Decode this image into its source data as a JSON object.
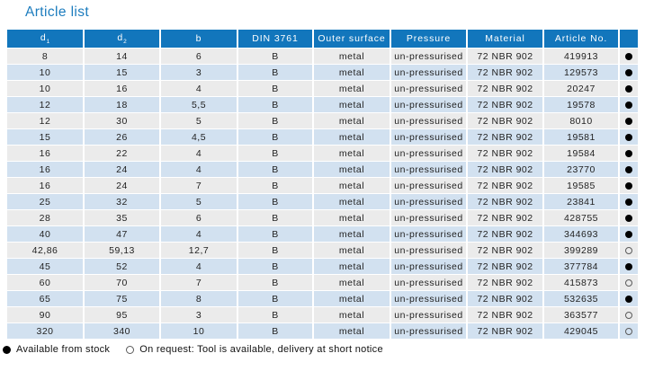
{
  "title": "Article list",
  "colors": {
    "header_bg": "#1276bc",
    "row_gray": "#ebebeb",
    "row_blue": "#d2e1f0",
    "title_text": "#1c7cbe",
    "header_text": "#ffffff",
    "body_text": "#222222",
    "dot_filled": "#000000"
  },
  "table": {
    "columns": [
      {
        "key": "d1",
        "label": "d",
        "sub": "1"
      },
      {
        "key": "d2",
        "label": "d",
        "sub": "2"
      },
      {
        "key": "b",
        "label": "b"
      },
      {
        "key": "din",
        "label": "DIN 3761"
      },
      {
        "key": "outer_surface",
        "label": "Outer surface"
      },
      {
        "key": "pressure",
        "label": "Pressure"
      },
      {
        "key": "material",
        "label": "Material"
      },
      {
        "key": "article_no",
        "label": "Article No."
      },
      {
        "key": "availability",
        "label": ""
      }
    ],
    "rows": [
      {
        "d1": "8",
        "d2": "14",
        "b": "6",
        "din": "B",
        "outer_surface": "metal",
        "pressure": "un-pressurised",
        "material": "72 NBR 902",
        "article_no": "419913",
        "availability": "stock"
      },
      {
        "d1": "10",
        "d2": "15",
        "b": "3",
        "din": "B",
        "outer_surface": "metal",
        "pressure": "un-pressurised",
        "material": "72 NBR 902",
        "article_no": "129573",
        "availability": "stock"
      },
      {
        "d1": "10",
        "d2": "16",
        "b": "4",
        "din": "B",
        "outer_surface": "metal",
        "pressure": "un-pressurised",
        "material": "72 NBR 902",
        "article_no": "20247",
        "availability": "stock"
      },
      {
        "d1": "12",
        "d2": "18",
        "b": "5,5",
        "din": "B",
        "outer_surface": "metal",
        "pressure": "un-pressurised",
        "material": "72 NBR 902",
        "article_no": "19578",
        "availability": "stock"
      },
      {
        "d1": "12",
        "d2": "30",
        "b": "5",
        "din": "B",
        "outer_surface": "metal",
        "pressure": "un-pressurised",
        "material": "72 NBR 902",
        "article_no": "8010",
        "availability": "stock"
      },
      {
        "d1": "15",
        "d2": "26",
        "b": "4,5",
        "din": "B",
        "outer_surface": "metal",
        "pressure": "un-pressurised",
        "material": "72 NBR 902",
        "article_no": "19581",
        "availability": "stock"
      },
      {
        "d1": "16",
        "d2": "22",
        "b": "4",
        "din": "B",
        "outer_surface": "metal",
        "pressure": "un-pressurised",
        "material": "72 NBR 902",
        "article_no": "19584",
        "availability": "stock"
      },
      {
        "d1": "16",
        "d2": "24",
        "b": "4",
        "din": "B",
        "outer_surface": "metal",
        "pressure": "un-pressurised",
        "material": "72 NBR 902",
        "article_no": "23770",
        "availability": "stock"
      },
      {
        "d1": "16",
        "d2": "24",
        "b": "7",
        "din": "B",
        "outer_surface": "metal",
        "pressure": "un-pressurised",
        "material": "72 NBR 902",
        "article_no": "19585",
        "availability": "stock"
      },
      {
        "d1": "25",
        "d2": "32",
        "b": "5",
        "din": "B",
        "outer_surface": "metal",
        "pressure": "un-pressurised",
        "material": "72 NBR 902",
        "article_no": "23841",
        "availability": "stock"
      },
      {
        "d1": "28",
        "d2": "35",
        "b": "6",
        "din": "B",
        "outer_surface": "metal",
        "pressure": "un-pressurised",
        "material": "72 NBR 902",
        "article_no": "428755",
        "availability": "stock"
      },
      {
        "d1": "40",
        "d2": "47",
        "b": "4",
        "din": "B",
        "outer_surface": "metal",
        "pressure": "un-pressurised",
        "material": "72 NBR 902",
        "article_no": "344693",
        "availability": "stock"
      },
      {
        "d1": "42,86",
        "d2": "59,13",
        "b": "12,7",
        "din": "B",
        "outer_surface": "metal",
        "pressure": "un-pressurised",
        "material": "72 NBR 902",
        "article_no": "399289",
        "availability": "on-request"
      },
      {
        "d1": "45",
        "d2": "52",
        "b": "4",
        "din": "B",
        "outer_surface": "metal",
        "pressure": "un-pressurised",
        "material": "72 NBR 902",
        "article_no": "377784",
        "availability": "stock"
      },
      {
        "d1": "60",
        "d2": "70",
        "b": "7",
        "din": "B",
        "outer_surface": "metal",
        "pressure": "un-pressurised",
        "material": "72 NBR 902",
        "article_no": "415873",
        "availability": "on-request"
      },
      {
        "d1": "65",
        "d2": "75",
        "b": "8",
        "din": "B",
        "outer_surface": "metal",
        "pressure": "un-pressurised",
        "material": "72 NBR 902",
        "article_no": "532635",
        "availability": "stock"
      },
      {
        "d1": "90",
        "d2": "95",
        "b": "3",
        "din": "B",
        "outer_surface": "metal",
        "pressure": "un-pressurised",
        "material": "72 NBR 902",
        "article_no": "363577",
        "availability": "on-request"
      },
      {
        "d1": "320",
        "d2": "340",
        "b": "10",
        "din": "B",
        "outer_surface": "metal",
        "pressure": "un-pressurised",
        "material": "72 NBR 902",
        "article_no": "429045",
        "availability": "on-request"
      }
    ]
  },
  "legend": {
    "available_from_stock": "Available from stock",
    "on_request": "On request: Tool is available, delivery at short notice"
  }
}
